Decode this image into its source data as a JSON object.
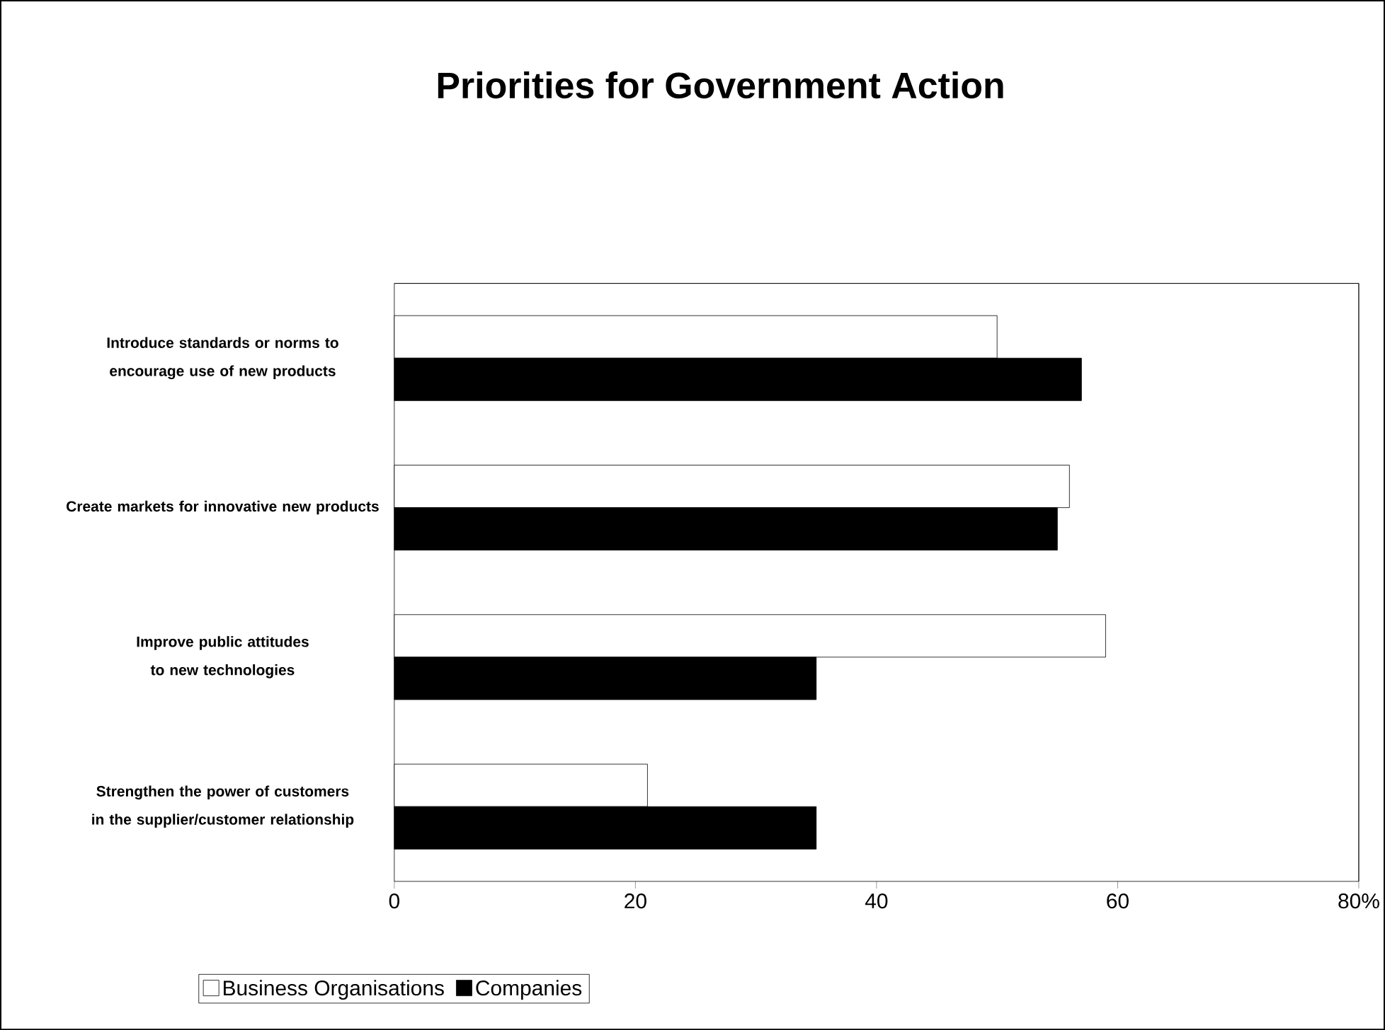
{
  "chart_data": {
    "type": "bar",
    "orientation": "horizontal",
    "title": "Priorities for Government Action",
    "categories": [
      "Introduce standards or norms to encourage use of new products",
      "Create markets for innovative new products",
      "Improve public attitudes to new technologies",
      "Strengthen the power of customers in the supplier/customer relationship"
    ],
    "series": [
      {
        "name": "Business Organisations",
        "color": "#ffffff",
        "values": [
          50,
          56,
          59,
          21
        ]
      },
      {
        "name": "Companies",
        "color": "#000000",
        "values": [
          57,
          55,
          35,
          35
        ]
      }
    ],
    "xlim": [
      0,
      80
    ],
    "xticks": [
      0,
      20,
      40,
      60,
      {
        "value": 80,
        "label": "80%"
      }
    ],
    "legend": "bottom"
  }
}
